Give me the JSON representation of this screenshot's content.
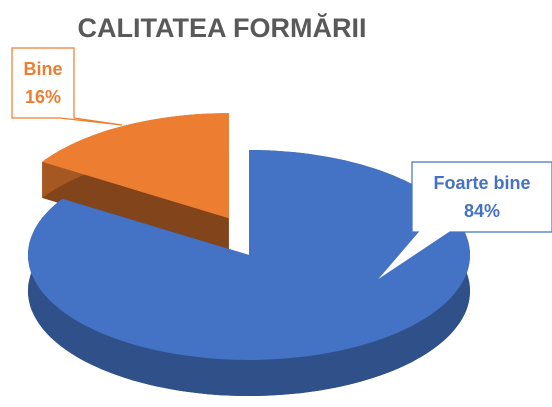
{
  "chart_data": {
    "type": "pie",
    "title": "CALITATEA FORMĂRII",
    "categories": [
      "Foarte bine",
      "Bine"
    ],
    "values": [
      84,
      16
    ],
    "value_labels": [
      "84%",
      "16%"
    ],
    "colors": [
      "#4472c4",
      "#ed7d31"
    ]
  }
}
